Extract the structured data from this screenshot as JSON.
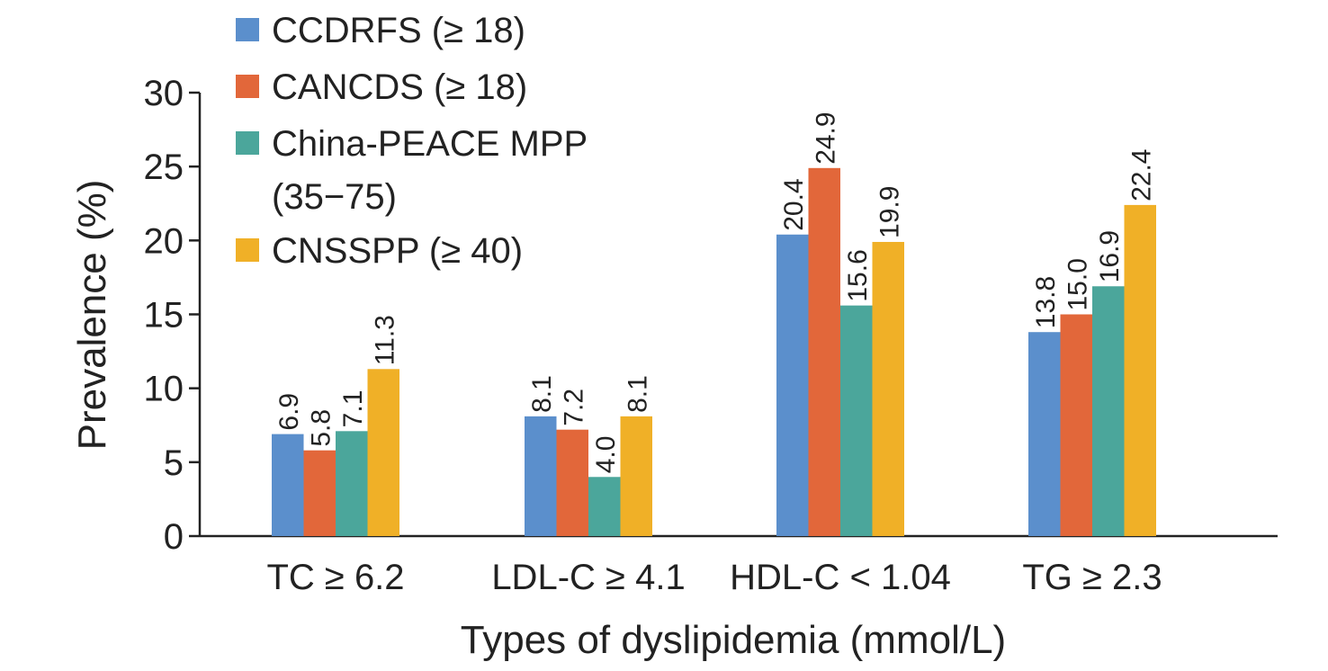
{
  "chart_data": {
    "type": "bar",
    "title": "",
    "xlabel": "Types of dyslipidemia (mmol/L)",
    "ylabel": "Prevalence (%)",
    "ylim": [
      0,
      30
    ],
    "yticks": [
      "0",
      "5",
      "10",
      "15",
      "20",
      "25",
      "30"
    ],
    "categories": [
      "TC ≥ 6.2",
      "LDL-C ≥ 4.1",
      "HDL-C < 1.04",
      "TG ≥ 2.3"
    ],
    "series": [
      {
        "name": "CCDRFS (≥ 18)",
        "color": "#5b8fcc",
        "values": [
          6.9,
          8.1,
          20.4,
          13.8
        ],
        "labels": [
          "6.9",
          "8.1",
          "20.4",
          "13.8"
        ]
      },
      {
        "name": "CANCDS (≥ 18)",
        "color": "#e2673a",
        "values": [
          5.8,
          7.2,
          24.9,
          15.0
        ],
        "labels": [
          "5.8",
          "7.2",
          "24.9",
          "15.0"
        ]
      },
      {
        "name": "China-PEACE MPP (35−75)",
        "color": "#4ba69b",
        "values": [
          7.1,
          4.0,
          15.6,
          16.9
        ],
        "labels": [
          "7.1",
          "4.0",
          "15.6",
          "16.9"
        ]
      },
      {
        "name": "CNSSPP (≥ 40)",
        "color": "#f0b027",
        "values": [
          11.3,
          8.1,
          19.9,
          22.4
        ],
        "labels": [
          "11.3",
          "8.1",
          "19.9",
          "22.4"
        ]
      }
    ],
    "legend": {
      "position": "top-left",
      "lines": [
        [
          "CCDRFS (≥ 18)"
        ],
        [
          "CANCDS (≥ 18)"
        ],
        [
          "China-PEACE MPP",
          "(35−75)"
        ],
        [
          "CNSSPP (≥ 40)"
        ]
      ]
    },
    "grid": false
  }
}
